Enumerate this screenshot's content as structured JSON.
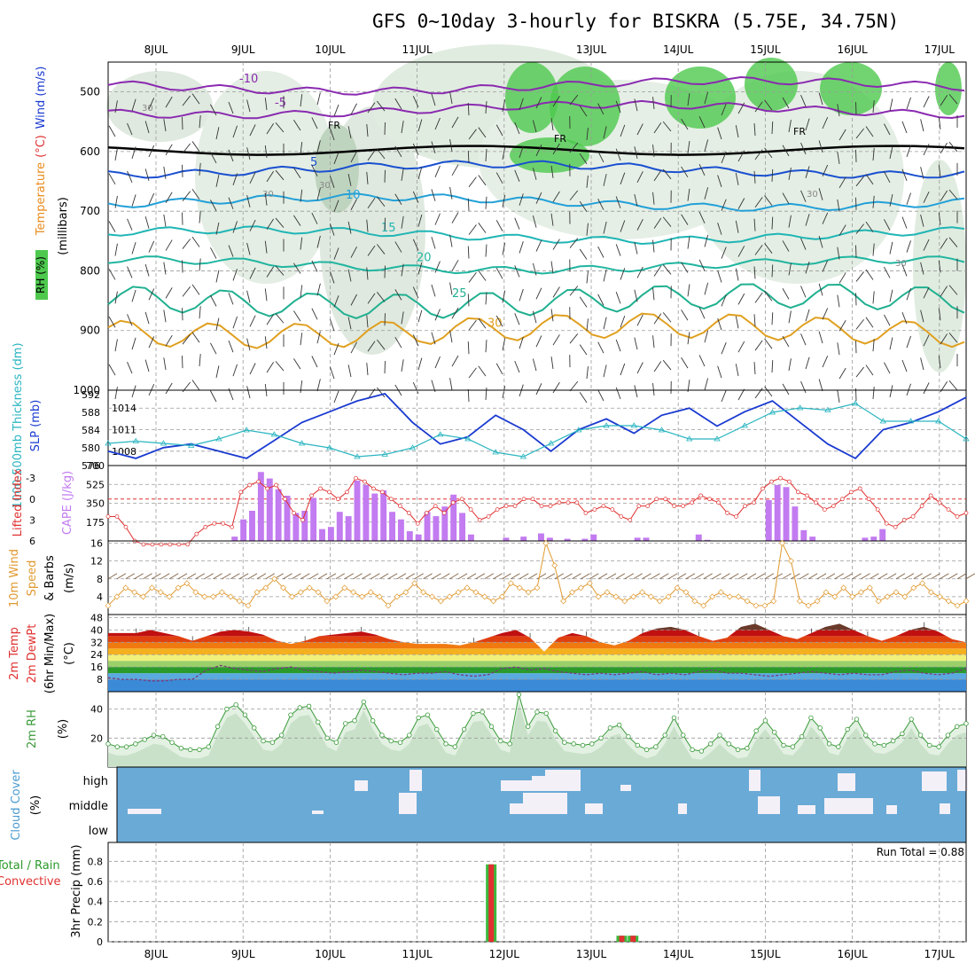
{
  "title": "GFS 0~10day 3-hourly for BISKRA (5.75E, 34.75N)",
  "days": [
    "8JUL",
    "9JUL",
    "10JUL",
    "11JUL",
    "12JUL",
    "13JUL",
    "14JUL",
    "15JUL",
    "16JUL",
    "17JUL"
  ],
  "colors": {
    "grid": "#9a9a9a",
    "rh_fill": "#4ec94e",
    "slp": "#1a3ad0",
    "thick": "#2ab5c0",
    "cape": "#c27bf0",
    "li": "#e03030",
    "wind": "#e09a30",
    "cloud": "#6aaad6",
    "rain": "#e03030",
    "precip_total": "#3cb83c"
  },
  "chart_data": [
    {
      "panel": "upper-air",
      "type": "contour",
      "ylabel_parts": [
        "RH (%)",
        "Temperature (°C)",
        "Wind (m/s)",
        "(millibars)"
      ],
      "y_ticks": [
        500,
        600,
        700,
        800,
        900,
        1000
      ],
      "ylim": [
        1000,
        450
      ],
      "freezing_label": "FR",
      "temp_isotherms": [
        {
          "label": "-10",
          "level": 490,
          "color": "#8a2ab0"
        },
        {
          "label": "-5",
          "level": 530,
          "color": "#8a2ab0"
        },
        {
          "label": "5",
          "level": 630,
          "color": "#1a50d0"
        },
        {
          "label": "10",
          "level": 685,
          "color": "#22a0d8"
        },
        {
          "label": "15",
          "level": 740,
          "color": "#20b5b5"
        },
        {
          "label": "20",
          "level": 790,
          "color": "#20b5a0"
        },
        {
          "label": "25",
          "level": 850,
          "color": "#20b090"
        },
        {
          "label": "30",
          "level": 900,
          "color": "#e0a020"
        }
      ],
      "rh_labels": [
        "30",
        "30",
        "30",
        "30",
        "30"
      ]
    },
    {
      "panel": "slp-thickness",
      "type": "line",
      "ylabel_left": "1000-500mb Thickness (dm)",
      "ylabel_right": "SLP (mb)",
      "thick_ticks": [
        "576",
        "580",
        "584",
        "588",
        "592"
      ],
      "slp_ticks": [
        "1008",
        "1011",
        "1014"
      ],
      "slp": [
        1008,
        1007,
        1008.5,
        1009,
        1008,
        1007,
        1009.5,
        1012,
        1013.5,
        1015,
        1016,
        1012,
        1009,
        1010,
        1013,
        1011,
        1008,
        1011,
        1012.5,
        1010.5,
        1013,
        1014,
        1011.5,
        1013.5,
        1015,
        1012,
        1009,
        1007,
        1011,
        1012,
        1013.5,
        1015.5
      ],
      "thick": [
        581,
        581.5,
        581,
        580.5,
        582,
        584,
        583,
        581,
        580,
        578,
        578.5,
        580,
        583,
        582,
        579,
        578,
        581,
        584,
        585,
        585,
        584,
        582,
        582,
        585,
        588,
        589,
        588.5,
        590,
        586,
        586,
        586,
        582
      ]
    },
    {
      "panel": "cape-li",
      "type": "bar",
      "ylabel_left": "Lifted Index",
      "ylabel_right": "CAPE (J/kg)",
      "li_ticks": [
        "-3",
        "0",
        "3",
        "6"
      ],
      "cape_ticks": [
        "175",
        "350",
        "525",
        "700"
      ],
      "cape": [
        0,
        0,
        0,
        0,
        0,
        0,
        0,
        0,
        0,
        0,
        0,
        0,
        0,
        0,
        40,
        200,
        280,
        640,
        580,
        480,
        420,
        260,
        280,
        400,
        110,
        130,
        270,
        230,
        560,
        520,
        440,
        470,
        270,
        200,
        90,
        60,
        270,
        230,
        320,
        430,
        260,
        60,
        0,
        0,
        0,
        30,
        0,
        40,
        0,
        70,
        30,
        0,
        20,
        0,
        20,
        60,
        0,
        0,
        0,
        0,
        30,
        30,
        0,
        0,
        0,
        0,
        0,
        60,
        10,
        0,
        0,
        0,
        0,
        0,
        0,
        380,
        520,
        500,
        320,
        100,
        40,
        0,
        0,
        0,
        0,
        0,
        30,
        40,
        110,
        0,
        0,
        0,
        0,
        0,
        0,
        0,
        0,
        0
      ],
      "li": [
        2.5,
        2.5,
        4,
        6,
        6.5,
        6.5,
        6.5,
        6.5,
        6.5,
        6.5,
        5,
        4,
        3.5,
        3.5,
        4,
        -1,
        -2,
        -2.5,
        -1.5,
        -2,
        0,
        2,
        3,
        -0.5,
        -1.5,
        -1,
        0,
        -1,
        -3,
        -2.5,
        -1.5,
        -1,
        0,
        1,
        2,
        3.5,
        2,
        1,
        2,
        0.5,
        0,
        1.5,
        3,
        2.5,
        1.5,
        1,
        1,
        0,
        0,
        1,
        1,
        0.5,
        0.5,
        0.5,
        2,
        1.5,
        1,
        1.5,
        2.5,
        3,
        1,
        1,
        0,
        0,
        1,
        1,
        0.5,
        -0.5,
        0,
        0.5,
        2,
        2.5,
        1,
        0.5,
        -1.5,
        -2.5,
        -3,
        -2.5,
        -1,
        -0.5,
        0.5,
        1.5,
        1,
        0,
        -1,
        -1.5,
        0,
        1.5,
        3.5,
        4,
        3,
        2.5,
        1,
        -0.5,
        0.5,
        1.5,
        2.5,
        2
      ]
    },
    {
      "panel": "wind10m",
      "type": "line",
      "ylabel": "10m Wind Speed & Barbs (m/s)",
      "ticks": [
        "4",
        "8",
        "12",
        "16"
      ],
      "speed": [
        2,
        4,
        6,
        5,
        4,
        6,
        5,
        4,
        6,
        7,
        5,
        4,
        4,
        5,
        4,
        3,
        2,
        5,
        6,
        8,
        6,
        4,
        5,
        6,
        5,
        3,
        4,
        6,
        5,
        4,
        5,
        4,
        2,
        4,
        5,
        7,
        5,
        4,
        3,
        4,
        5,
        6,
        5,
        4,
        3,
        4,
        7,
        6,
        5,
        6,
        16,
        11,
        3,
        5,
        6,
        7,
        4,
        5,
        4,
        3,
        4,
        5,
        4,
        3,
        4,
        6,
        5,
        3,
        2,
        4,
        5,
        4,
        4,
        3,
        2,
        2,
        3,
        16,
        12,
        3,
        2,
        3,
        5,
        4,
        6,
        4,
        5,
        6,
        3,
        4,
        5,
        4,
        6,
        7,
        5,
        4,
        3,
        2,
        3
      ]
    },
    {
      "panel": "temp2m",
      "type": "area",
      "ylabel": "2m Temp 2m DewPt (6hr Min/Max) (°C)",
      "ticks": [
        "8",
        "16",
        "24",
        "32",
        "40",
        "48"
      ],
      "tmax": [
        38,
        38,
        38,
        40,
        38,
        36,
        33,
        36,
        39,
        40,
        39,
        37,
        33,
        31,
        33,
        36,
        37,
        38,
        39,
        37,
        34,
        32,
        31,
        31,
        31,
        30,
        32,
        35,
        38,
        40,
        35,
        26,
        35,
        38,
        36,
        32,
        30,
        33,
        38,
        41,
        42,
        40,
        36,
        33,
        35,
        42,
        44,
        40,
        36,
        34,
        38,
        42,
        44,
        40,
        36,
        33,
        36,
        40,
        42,
        39,
        34,
        32
      ],
      "dewpt": [
        9,
        8,
        8,
        7,
        7,
        8,
        8,
        14,
        17,
        15,
        14,
        13,
        15,
        16,
        14,
        13,
        12,
        13,
        14,
        13,
        12,
        11,
        12,
        12,
        13,
        11,
        10,
        11,
        15,
        16,
        14,
        15,
        13,
        12,
        11,
        12,
        11,
        12,
        13,
        11,
        12,
        11,
        13,
        14,
        12,
        12,
        11,
        10,
        11,
        12,
        13,
        12,
        11,
        12,
        11,
        11,
        13,
        14,
        12,
        11,
        12,
        15
      ]
    },
    {
      "panel": "rh2m",
      "type": "area",
      "ylabel": "2m RH (%)",
      "ticks": [
        "20",
        "40"
      ],
      "rh": [
        16,
        14,
        14,
        16,
        19,
        22,
        21,
        17,
        13,
        12,
        12,
        14,
        28,
        40,
        43,
        36,
        27,
        18,
        17,
        22,
        36,
        41,
        42,
        31,
        20,
        17,
        30,
        32,
        45,
        32,
        22,
        18,
        17,
        22,
        34,
        36,
        26,
        16,
        14,
        26,
        37,
        38,
        28,
        18,
        16,
        50,
        28,
        38,
        37,
        25,
        17,
        16,
        15,
        16,
        20,
        27,
        29,
        21,
        15,
        12,
        14,
        22,
        34,
        22,
        12,
        11,
        16,
        22,
        16,
        12,
        13,
        25,
        32,
        24,
        15,
        14,
        21,
        34,
        27,
        16,
        14,
        26,
        33,
        22,
        16,
        15,
        18,
        23,
        33,
        22,
        15,
        14,
        22,
        28,
        30
      ]
    },
    {
      "panel": "cloud",
      "type": "heatmap",
      "ylabel": "Cloud Cover (%)",
      "levels": [
        "high",
        "middle",
        "low"
      ]
    },
    {
      "panel": "precip",
      "type": "bar",
      "ylabel": "3hr Precip (mm)",
      "legend": [
        "Total / Rain",
        "Convective"
      ],
      "ticks": [
        "0",
        "0.2",
        "0.4",
        "0.6",
        "0.8"
      ],
      "run_total": "Run Total = 0.88",
      "bars": [
        {
          "day": 3.82,
          "total": 0.77,
          "conv": 0.77
        },
        {
          "day": 5.32,
          "total": 0.06,
          "conv": 0.06
        },
        {
          "day": 5.45,
          "total": 0.06,
          "conv": 0.06
        }
      ]
    }
  ]
}
